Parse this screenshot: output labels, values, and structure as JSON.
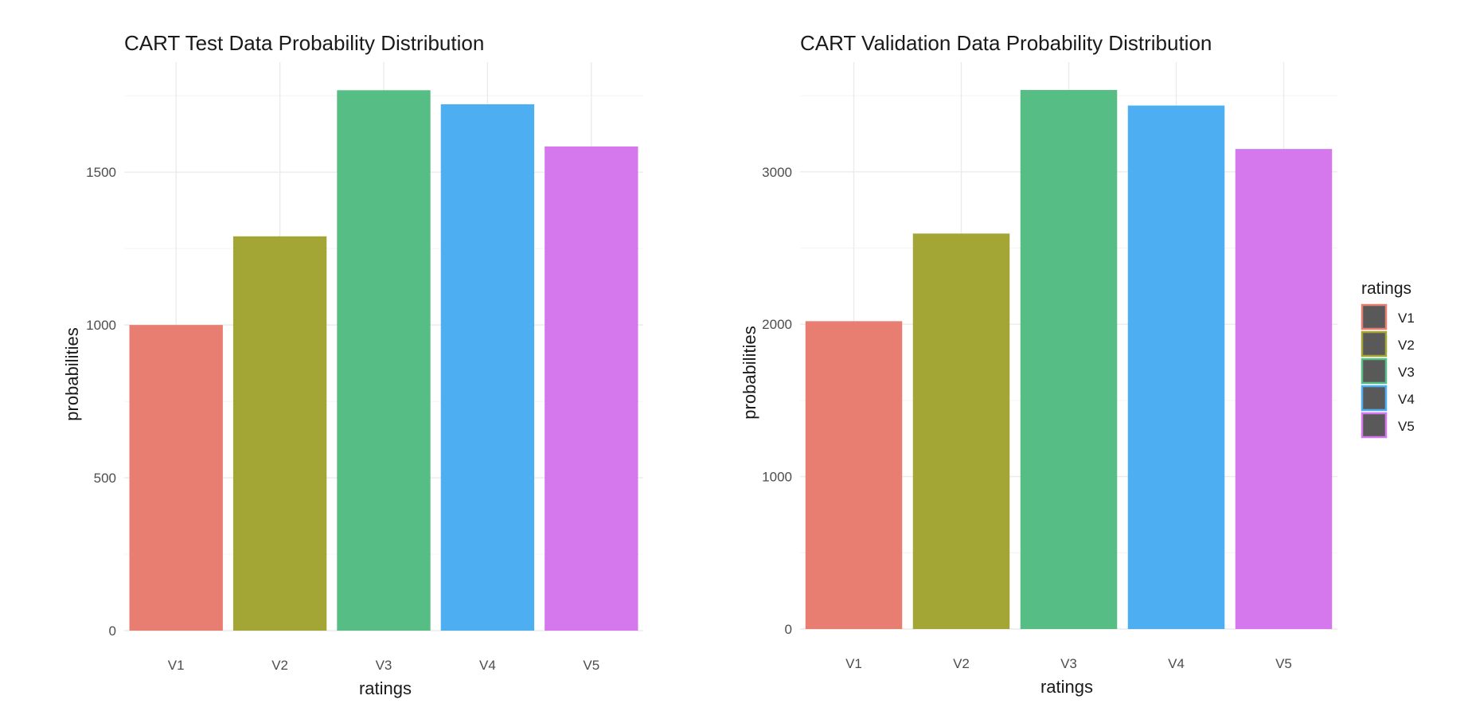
{
  "chart_data": [
    {
      "type": "bar",
      "title": "CART Test Data Probability Distribution",
      "xlabel": "ratings",
      "ylabel": "probabilities",
      "categories": [
        "V1",
        "V2",
        "V3",
        "V4",
        "V5"
      ],
      "values": [
        1000,
        1290,
        1768,
        1722,
        1584
      ],
      "ylim": [
        0,
        1860
      ],
      "yticks": [
        0,
        500,
        1000,
        1500
      ],
      "ytick_labels": [
        "0",
        "500",
        "1000",
        "1500"
      ],
      "grid": true
    },
    {
      "type": "bar",
      "title": "CART Validation Data Probability Distribution",
      "xlabel": "ratings",
      "ylabel": "probabilities",
      "categories": [
        "V1",
        "V2",
        "V3",
        "V4",
        "V5"
      ],
      "values": [
        2020,
        2595,
        3537,
        3435,
        3150
      ],
      "ylim": [
        0,
        3720
      ],
      "yticks": [
        0,
        1000,
        2000,
        3000
      ],
      "ytick_labels": [
        "0",
        "1000",
        "2000",
        "3000"
      ],
      "grid": true,
      "legend": {
        "title": "ratings",
        "placement": "right",
        "entries": [
          "V1",
          "V2",
          "V3",
          "V4",
          "V5"
        ]
      }
    }
  ],
  "colors": {
    "V1": "#e87d72",
    "V2": "#a3a535",
    "V3": "#56bd84",
    "V4": "#4daff2",
    "V5": "#d678ed",
    "legend_key_fill": "#595959"
  }
}
